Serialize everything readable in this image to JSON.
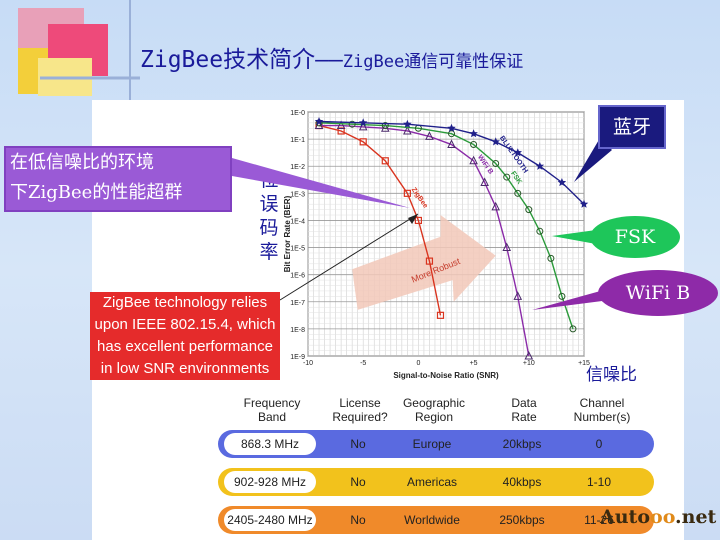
{
  "slide": {
    "title_main": "ZigBee技术简介",
    "title_dash": "——",
    "title_sub": "ZigBee通信可靠性保证"
  },
  "callouts": {
    "left_line1": "在低信噪比的环境",
    "left_line2": "下ZigBee的性能超群",
    "bluetooth": "蓝牙",
    "fsk": "FSK",
    "wifi": "WiFi B",
    "red_box": "ZigBee technology relies upon IEEE 802.15.4, which has excellent performance in low SNR environments"
  },
  "labels": {
    "ber_vertical": [
      "位",
      "误",
      "码",
      "率"
    ],
    "snr": "信噪比"
  },
  "chart_data": {
    "type": "line",
    "xlabel": "Signal-to-Noise Ratio (SNR)",
    "ylabel": "Bit Error Rate (BER)",
    "x_ticks": [
      "-10",
      "-5",
      "0",
      "+5",
      "+10",
      "+15"
    ],
    "y_ticks": [
      "1E-0",
      "1E-1",
      "1E-2",
      "1E-3",
      "1E-4",
      "1E-5",
      "1E-6",
      "1E-7",
      "1E-8",
      "1E-9"
    ],
    "xlim": [
      -10,
      15
    ],
    "ylim_log10": [
      0,
      -9
    ],
    "annotation": "More Robust",
    "series": [
      {
        "name": "ZigBee",
        "color": "#d9341f",
        "marker": "square",
        "x": [
          -9,
          -7,
          -5,
          -3,
          -1,
          0,
          1,
          2
        ],
        "y": [
          -0.5,
          -0.7,
          -1.1,
          -1.8,
          -3,
          -4,
          -5.5,
          -7.5
        ]
      },
      {
        "name": "WiFi B",
        "color": "#8a2aa8",
        "marker": "triangle",
        "x": [
          -9,
          -7,
          -5,
          -3,
          -1,
          1,
          3,
          5,
          6,
          7,
          8,
          9,
          10
        ],
        "y": [
          -0.5,
          -0.5,
          -0.55,
          -0.6,
          -0.7,
          -0.9,
          -1.2,
          -1.8,
          -2.6,
          -3.5,
          -5,
          -6.8,
          -9
        ]
      },
      {
        "name": "FSK",
        "color": "#2a9a3a",
        "marker": "circle",
        "x": [
          -9,
          -6,
          -3,
          0,
          3,
          5,
          7,
          8,
          9,
          10,
          11,
          12,
          13,
          14
        ],
        "y": [
          -0.4,
          -0.45,
          -0.5,
          -0.6,
          -0.8,
          -1.2,
          -1.9,
          -2.4,
          -3,
          -3.6,
          -4.4,
          -5.4,
          -6.8,
          -8
        ]
      },
      {
        "name": "BLUETOOTH",
        "color": "#20208a",
        "marker": "star",
        "x": [
          -9,
          -5,
          -1,
          3,
          5,
          7,
          9,
          11,
          13,
          15
        ],
        "y": [
          -0.35,
          -0.4,
          -0.45,
          -0.6,
          -0.8,
          -1.1,
          -1.5,
          -2,
          -2.6,
          -3.4
        ]
      }
    ]
  },
  "table": {
    "headers": [
      [
        "Frequency",
        "Band"
      ],
      [
        "License",
        "Required?"
      ],
      [
        "Geographic",
        "Region"
      ],
      [
        "Data",
        "Rate"
      ],
      [
        "Channel",
        "Number(s)"
      ]
    ],
    "rows": [
      {
        "band": "868.3 MHz",
        "license": "No",
        "region": "Europe",
        "rate": "20kbps",
        "channels": "0",
        "color": "#5a6ae0"
      },
      {
        "band": "902-928 MHz",
        "license": "No",
        "region": "Americas",
        "rate": "40kbps",
        "channels": "1-10",
        "color": "#f2c21c"
      },
      {
        "band": "2405-2480 MHz",
        "license": "No",
        "region": "Worldwide",
        "rate": "250kbps",
        "channels": "11-26",
        "color": "#f08a2a"
      }
    ]
  },
  "watermark": {
    "a": "Auto",
    "b": "oo",
    "c": ".net"
  }
}
